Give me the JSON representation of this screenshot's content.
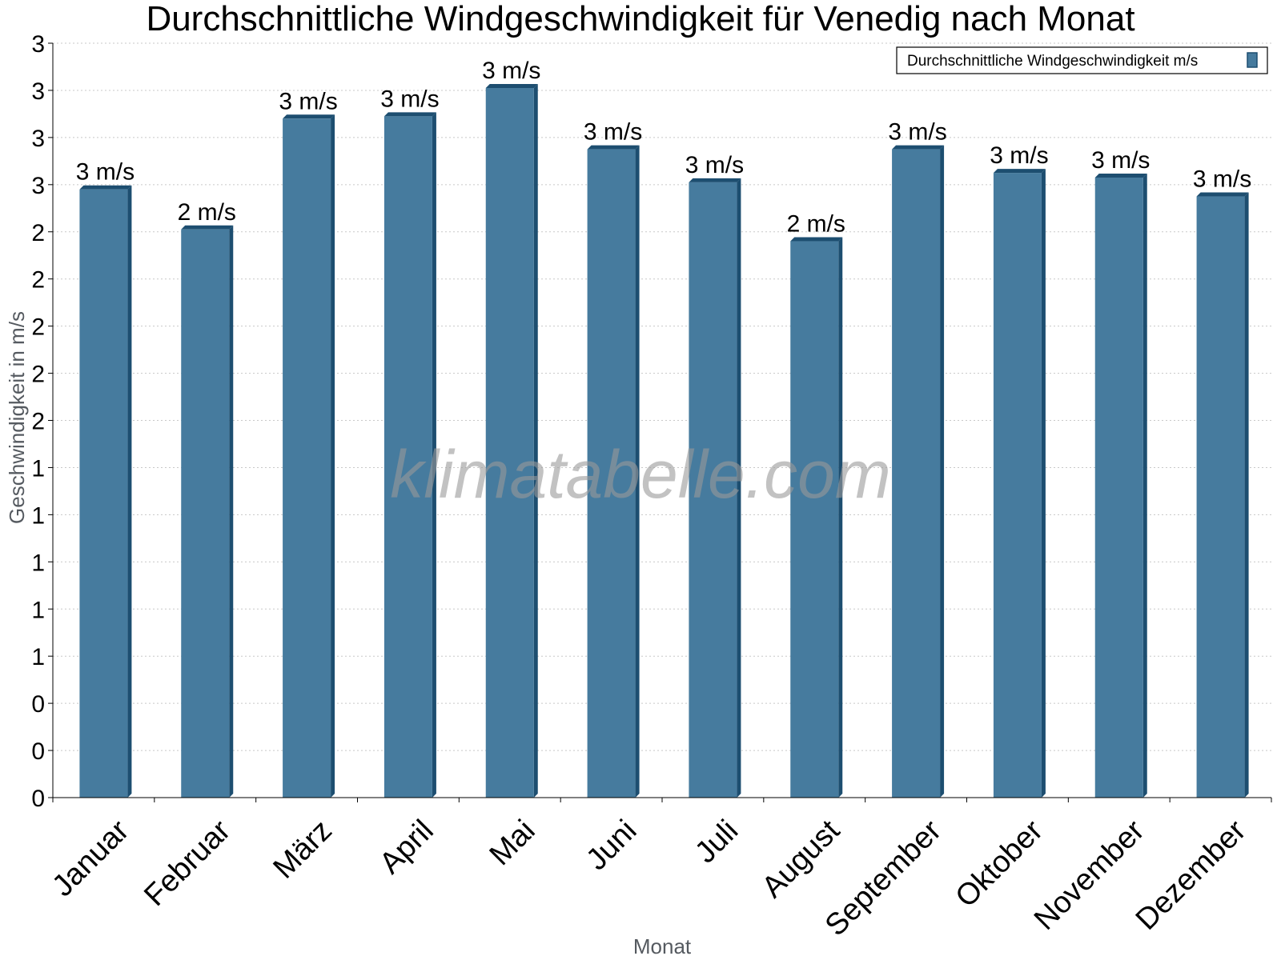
{
  "chart_data": {
    "type": "bar",
    "title": "Durchschnittliche Windgeschwindigkeit für Venedig nach Monat",
    "xlabel": "Monat",
    "ylabel": "Geschwindigkeit in m/s",
    "categories": [
      "Januar",
      "Februar",
      "März",
      "April",
      "Mai",
      "Juni",
      "Juli",
      "August",
      "September",
      "Oktober",
      "November",
      "Dezember"
    ],
    "series": [
      {
        "name": "Durchschnittliche Windgeschwindigkeit m/s",
        "values": [
          2.58,
          2.41,
          2.88,
          2.89,
          3.01,
          2.75,
          2.61,
          2.36,
          2.75,
          2.65,
          2.63,
          2.55
        ],
        "labels": [
          "3 m/s",
          "2 m/s",
          "3 m/s",
          "3 m/s",
          "3 m/s",
          "3 m/s",
          "3 m/s",
          "2 m/s",
          "3 m/s",
          "3 m/s",
          "3 m/s",
          "3 m/s"
        ],
        "color": "#467b9e",
        "side_color": "#1d4e70"
      }
    ],
    "ylim": [
      0,
      3.2
    ],
    "yticks": [
      0,
      0.2,
      0.4,
      0.6,
      0.8,
      1.0,
      1.2,
      1.4,
      1.6,
      1.8,
      2.0,
      2.2,
      2.4,
      2.6,
      2.8,
      3.0,
      3.2
    ],
    "ytick_labels": [
      "0",
      "0",
      "0",
      "1",
      "1",
      "1",
      "1",
      "1",
      "2",
      "2",
      "2",
      "2",
      "2",
      "3",
      "3",
      "3",
      "3"
    ],
    "grid": true,
    "legend_position": "top-right",
    "watermark": "klimatabelle.com"
  }
}
